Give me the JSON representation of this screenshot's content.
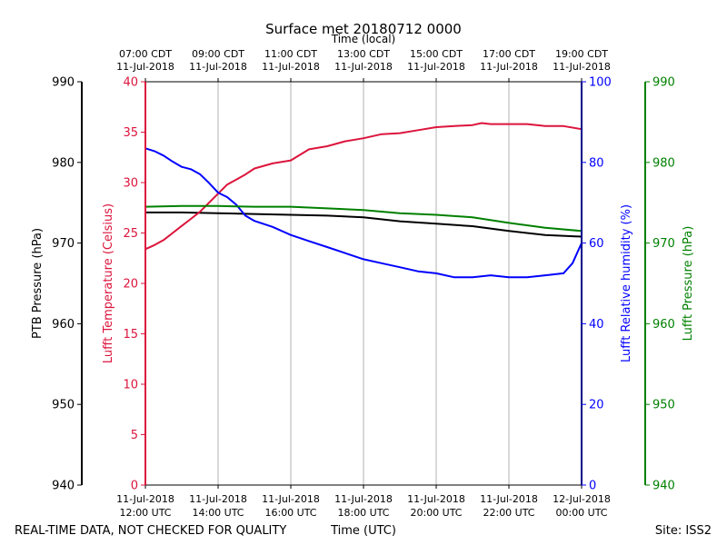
{
  "chart_data": {
    "type": "line",
    "title": "Surface met 20180712 0000",
    "top_axis_title": "Time (local)",
    "bottom_axis_title": "Time (UTC)",
    "footer_left": "REAL-TIME DATA, NOT CHECKED FOR QUALITY",
    "footer_right": "Site: ISS2",
    "x_ticks_utc": [
      {
        "line1": "11-Jul-2018",
        "line2": "12:00 UTC"
      },
      {
        "line1": "11-Jul-2018",
        "line2": "14:00 UTC"
      },
      {
        "line1": "11-Jul-2018",
        "line2": "16:00 UTC"
      },
      {
        "line1": "11-Jul-2018",
        "line2": "18:00 UTC"
      },
      {
        "line1": "11-Jul-2018",
        "line2": "20:00 UTC"
      },
      {
        "line1": "11-Jul-2018",
        "line2": "22:00 UTC"
      },
      {
        "line1": "12-Jul-2018",
        "line2": "00:00 UTC"
      }
    ],
    "x_ticks_local": [
      {
        "line1": "07:00 CDT",
        "line2": "11-Jul-2018"
      },
      {
        "line1": "09:00 CDT",
        "line2": "11-Jul-2018"
      },
      {
        "line1": "11:00 CDT",
        "line2": "11-Jul-2018"
      },
      {
        "line1": "13:00 CDT",
        "line2": "11-Jul-2018"
      },
      {
        "line1": "15:00 CDT",
        "line2": "11-Jul-2018"
      },
      {
        "line1": "17:00 CDT",
        "line2": "11-Jul-2018"
      },
      {
        "line1": "19:00 CDT",
        "line2": "11-Jul-2018"
      }
    ],
    "xlim_hours_utc": [
      12,
      24
    ],
    "axes": {
      "ptb": {
        "label": "PTB Pressure (hPa)",
        "color": "#000000",
        "ylim": [
          940,
          990
        ],
        "ticks": [
          940,
          950,
          960,
          970,
          980,
          990
        ]
      },
      "temp": {
        "label": "Lufft Temperature (Celsius)",
        "color": "#dc143c",
        "ylim": [
          0,
          40
        ],
        "ticks": [
          0,
          5,
          10,
          15,
          20,
          25,
          30,
          35,
          40
        ]
      },
      "rh": {
        "label": "Lufft Relative humidity (%)",
        "color": "#0000ff",
        "ylim": [
          0,
          100
        ],
        "ticks": [
          0,
          20,
          40,
          60,
          80,
          100
        ]
      },
      "lufft_p": {
        "label": "Lufft Pressure (hPa)",
        "color": "#008000",
        "ylim": [
          940,
          990
        ],
        "ticks": [
          940,
          950,
          960,
          970,
          980,
          990
        ]
      }
    },
    "grid": "vertical",
    "series": [
      {
        "name": "PTB Pressure",
        "axis": "ptb",
        "x": [
          12.0,
          13.0,
          14.0,
          15.0,
          16.0,
          17.0,
          18.0,
          19.0,
          20.0,
          21.0,
          22.0,
          23.0,
          24.0
        ],
        "values": [
          973.8,
          973.8,
          973.7,
          973.6,
          973.5,
          973.4,
          973.2,
          972.7,
          972.4,
          972.1,
          971.5,
          971.0,
          970.8
        ]
      },
      {
        "name": "Lufft Temperature",
        "axis": "temp",
        "x": [
          12.0,
          12.25,
          12.5,
          12.75,
          13.0,
          13.25,
          13.5,
          13.75,
          14.0,
          14.25,
          14.5,
          14.75,
          15.0,
          15.5,
          16.0,
          16.5,
          17.0,
          17.5,
          18.0,
          18.5,
          19.0,
          19.5,
          20.0,
          20.5,
          21.0,
          21.25,
          21.5,
          22.0,
          22.5,
          23.0,
          23.5,
          24.0
        ],
        "values": [
          23.4,
          23.8,
          24.3,
          25.0,
          25.7,
          26.4,
          27.1,
          28.0,
          28.9,
          29.8,
          30.3,
          30.8,
          31.4,
          31.9,
          32.2,
          33.3,
          33.6,
          34.1,
          34.4,
          34.8,
          34.9,
          35.2,
          35.5,
          35.6,
          35.7,
          35.9,
          35.8,
          35.8,
          35.8,
          35.6,
          35.6,
          35.3
        ]
      },
      {
        "name": "Lufft Relative humidity",
        "axis": "rh",
        "x": [
          12.0,
          12.25,
          12.5,
          12.75,
          13.0,
          13.25,
          13.5,
          13.75,
          14.0,
          14.25,
          14.5,
          14.75,
          15.0,
          15.5,
          16.0,
          16.5,
          17.0,
          17.5,
          18.0,
          18.5,
          19.0,
          19.5,
          20.0,
          20.5,
          21.0,
          21.5,
          22.0,
          22.5,
          23.0,
          23.5,
          23.75,
          24.0
        ],
        "values": [
          83.5,
          82.8,
          81.7,
          80.2,
          78.9,
          78.3,
          77.1,
          74.9,
          72.5,
          71.4,
          69.5,
          66.8,
          65.5,
          64.0,
          62.0,
          60.5,
          59.0,
          57.5,
          56.0,
          55.0,
          54.0,
          53.0,
          52.5,
          51.5,
          51.5,
          52.0,
          51.5,
          51.5,
          52.0,
          52.5,
          55.0,
          60.0
        ]
      },
      {
        "name": "Lufft Pressure",
        "axis": "lufft_p",
        "x": [
          12.0,
          13.0,
          14.0,
          15.0,
          16.0,
          17.0,
          18.0,
          19.0,
          20.0,
          21.0,
          22.0,
          23.0,
          24.0
        ],
        "values": [
          974.5,
          974.6,
          974.6,
          974.5,
          974.5,
          974.3,
          974.1,
          973.7,
          973.5,
          973.2,
          972.5,
          971.9,
          971.5
        ]
      }
    ]
  }
}
